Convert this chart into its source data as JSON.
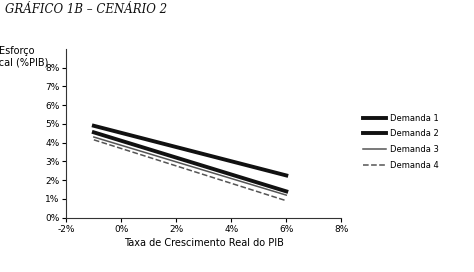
{
  "title": "GRÁFICO 1B – CENÁRIO 2",
  "ylabel": "Esforço\nFiscal (%PIB)",
  "xlabel": "Taxa de Crescimento Real do PIB",
  "xlim": [
    -0.02,
    0.08
  ],
  "ylim": [
    0.0,
    0.09
  ],
  "xticks": [
    -0.02,
    0.0,
    0.02,
    0.04,
    0.06,
    0.08
  ],
  "yticks": [
    0.0,
    0.01,
    0.02,
    0.03,
    0.04,
    0.05,
    0.06,
    0.07,
    0.08
  ],
  "lines": [
    {
      "label": "Demanda 1",
      "x": [
        -0.01,
        0.06
      ],
      "y": [
        0.049,
        0.0225
      ],
      "lw": 2.8,
      "ls": "solid",
      "color": "#111111"
    },
    {
      "label": "Demanda 2",
      "x": [
        -0.01,
        0.06
      ],
      "y": [
        0.0455,
        0.014
      ],
      "lw": 2.8,
      "ls": "solid",
      "color": "#111111"
    },
    {
      "label": "Demanda 3",
      "x": [
        -0.01,
        0.06
      ],
      "y": [
        0.043,
        0.012
      ],
      "lw": 1.1,
      "ls": "solid",
      "color": "#555555"
    },
    {
      "label": "Demanda 4",
      "x": [
        -0.01,
        0.06
      ],
      "y": [
        0.0415,
        0.009
      ],
      "lw": 1.1,
      "ls": "dashed",
      "color": "#555555"
    }
  ],
  "background_color": "#ffffff",
  "title_fontsize": 8.5,
  "label_fontsize": 7,
  "tick_fontsize": 6.5,
  "legend_fontsize": 6
}
